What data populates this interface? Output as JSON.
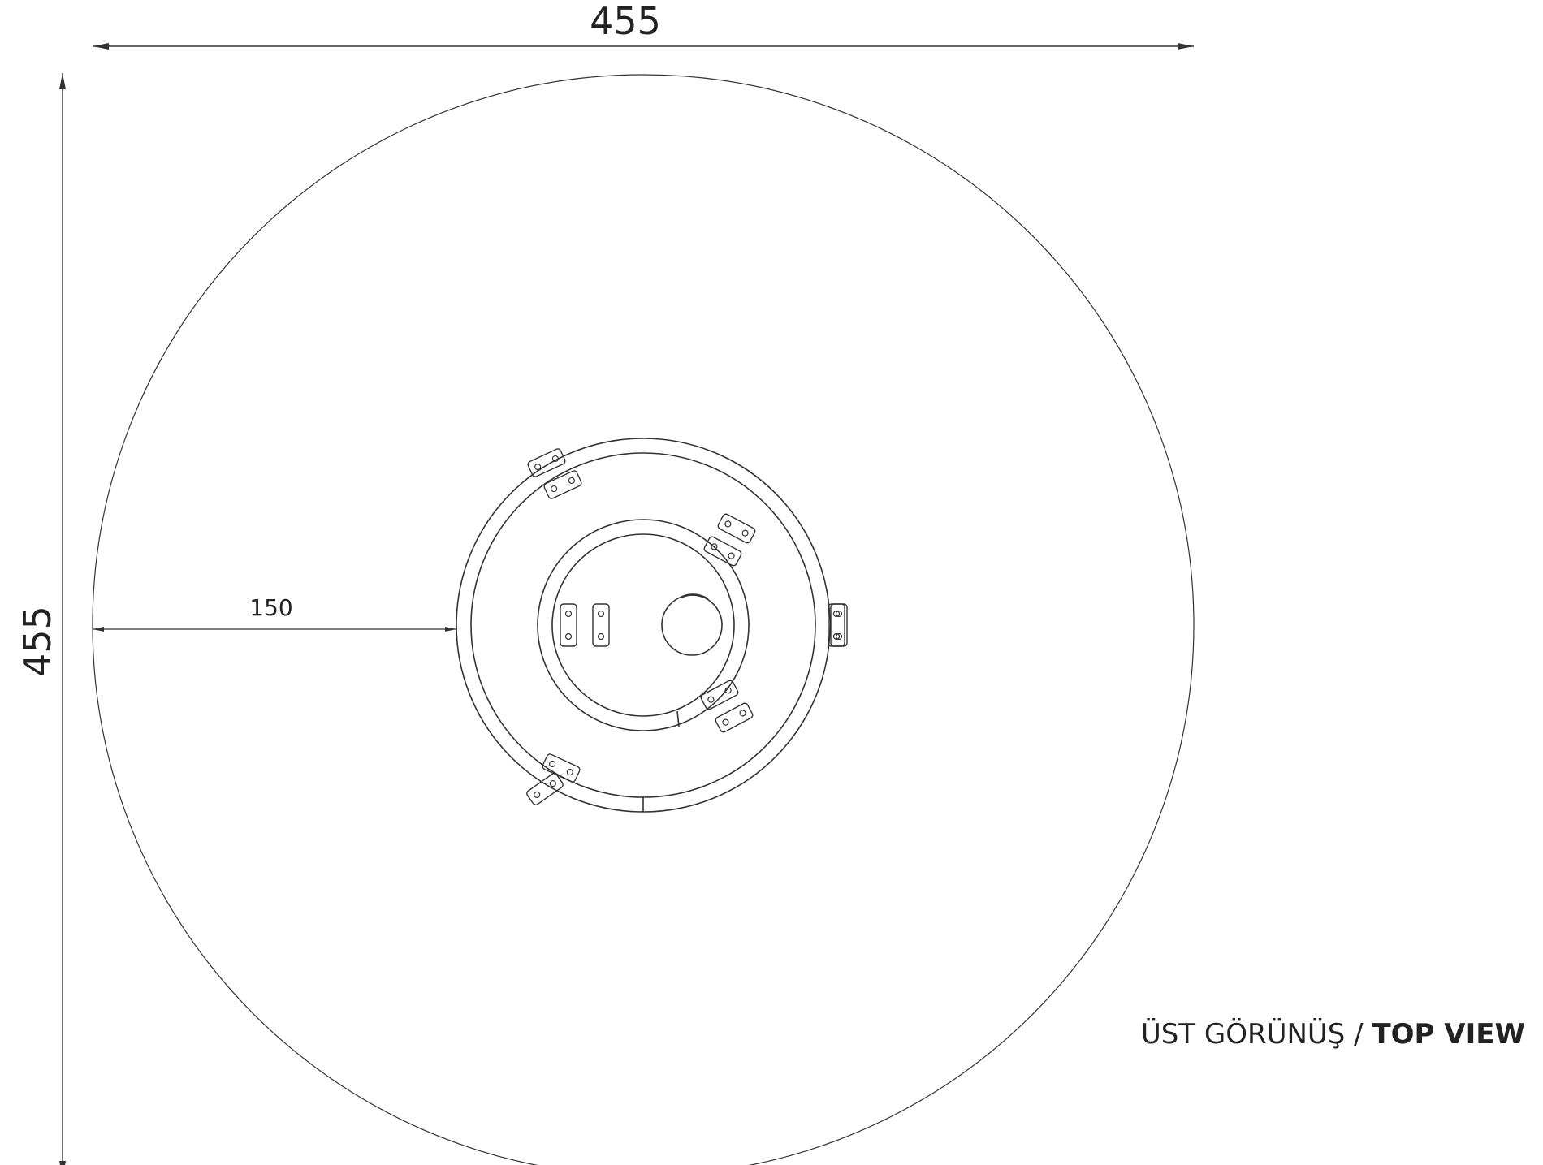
{
  "drawing": {
    "dimensions": {
      "width_label": "455",
      "height_label": "455",
      "offset_label": "150"
    },
    "caption": {
      "tr": "ÜST GÖRÜNÜŞ /",
      "en": "TOP VIEW"
    },
    "colors": {
      "line": "#333333",
      "text": "#222222"
    }
  }
}
